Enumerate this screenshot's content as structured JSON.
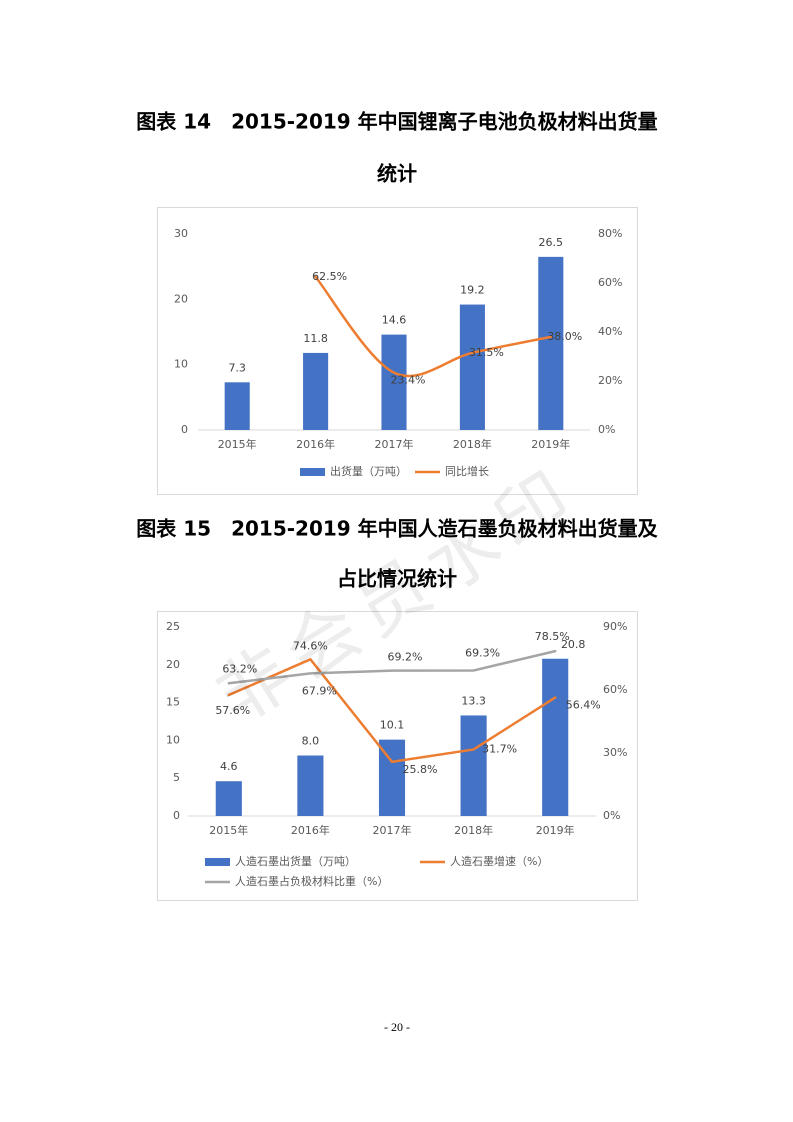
{
  "captions": [
    [
      "图表 14　2015-2019 年中国锂离子电池负极材料出货量",
      "统计"
    ],
    [
      "图表 15　2015-2019 年中国人造石墨负极材料出货量及",
      "占比情况统计"
    ]
  ],
  "page_number": "- 20 -",
  "watermark": "非会员水印",
  "chart_data": [
    {
      "type": "bar",
      "categories": [
        "2015年",
        "2016年",
        "2017年",
        "2018年",
        "2019年"
      ],
      "ylim": [
        0,
        30
      ],
      "yticks": [
        0,
        10,
        20,
        30
      ],
      "y2lim": [
        0,
        80
      ],
      "y2ticks": [
        {
          "value": 0,
          "label": "0%"
        },
        {
          "value": 20,
          "label": "20%"
        },
        {
          "value": 40,
          "label": "40%"
        },
        {
          "value": 60,
          "label": "60%"
        },
        {
          "value": 80,
          "label": "80%"
        }
      ],
      "series": [
        {
          "name": "出货量（万吨）",
          "type": "bar",
          "color": "#4472c4",
          "values": [
            7.3,
            11.8,
            14.6,
            19.2,
            26.5
          ]
        },
        {
          "name": "同比增长",
          "type": "line",
          "axis": "y2",
          "smooth": true,
          "color": "#ed7d31",
          "values": [
            null,
            62.5,
            23.4,
            31.5,
            38.0
          ],
          "value_labels": [
            null,
            "62.5%",
            "23.4%",
            "31.5%",
            "38.0%"
          ]
        }
      ]
    },
    {
      "type": "bar",
      "categories": [
        "2015年",
        "2016年",
        "2017年",
        "2018年",
        "2019年"
      ],
      "ylim": [
        0,
        25
      ],
      "yticks": [
        0,
        5,
        10,
        15,
        20,
        25
      ],
      "y2lim": [
        0,
        90
      ],
      "y2ticks": [
        {
          "value": 0,
          "label": "0%"
        },
        {
          "value": 30,
          "label": "30%"
        },
        {
          "value": 60,
          "label": "60%"
        },
        {
          "value": 90,
          "label": "90%"
        }
      ],
      "series": [
        {
          "name": "人造石墨出货量（万吨）",
          "type": "bar",
          "color": "#4472c4",
          "values": [
            4.6,
            8.0,
            10.1,
            13.3,
            20.8
          ],
          "value_labels": [
            "4.6",
            "8.0",
            "10.1",
            "13.3",
            "20.8"
          ]
        },
        {
          "name": "人造石墨增速（%）",
          "type": "line",
          "axis": "y2",
          "color": "#ed7d31",
          "values": [
            57.6,
            74.6,
            25.8,
            31.7,
            56.4
          ],
          "value_labels": [
            "57.6%",
            "74.6%",
            "25.8%",
            "31.7%",
            "56.4%"
          ]
        },
        {
          "name": "人造石墨占负极材料比重（%）",
          "type": "line",
          "axis": "y2",
          "color": "#a5a5a5",
          "values": [
            63.2,
            67.9,
            69.2,
            69.3,
            78.5
          ],
          "value_labels": [
            "63.2%",
            "67.9%",
            "69.2%",
            "69.3%",
            "78.5%"
          ]
        }
      ]
    }
  ]
}
